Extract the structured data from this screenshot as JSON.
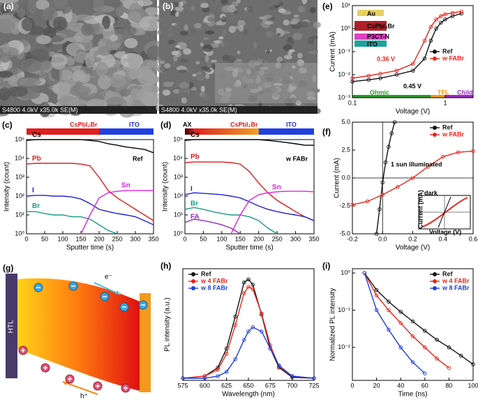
{
  "images": [
    {
      "panel": "(a)",
      "caption": "S4800 4.0kV x35.0k SE(M)"
    },
    {
      "panel": "(b)",
      "caption": "S4800 4.0kV x35.0k SE(M)"
    }
  ],
  "diagram": {
    "panel": "(g)",
    "labels": [
      "HTL",
      "e⁻",
      "h⁺"
    ]
  },
  "chart_data": [
    {
      "panel": "(e)",
      "type": "line",
      "xlabel": "Voltage (V)",
      "ylabel": "Current (mA)",
      "xscale": "log",
      "yscale": "log",
      "xlim": [
        0.1,
        2
      ],
      "xticks": [
        0.1,
        1
      ],
      "ylim": [
        0.001,
        10
      ],
      "yticks": [
        {
          "value": 0.001,
          "label": "10⁻³"
        },
        {
          "value": 0.01,
          "label": "10⁻²"
        },
        {
          "value": 0.1,
          "label": "10⁻¹"
        },
        {
          "value": 1,
          "label": "10⁰"
        },
        {
          "value": 10,
          "label": "10¹"
        }
      ],
      "legend": "center right",
      "markers": true,
      "x": [
        0.1,
        0.15,
        0.2,
        0.3,
        0.45,
        0.6,
        0.7,
        0.8,
        0.9,
        1.0,
        1.2,
        1.5
      ],
      "series": [
        {
          "name": "Ref",
          "color": "#111111",
          "values": [
            0.005,
            0.006,
            0.007,
            0.01,
            0.015,
            0.05,
            0.3,
            1.0,
            1.8,
            2.5,
            3.5,
            4.5
          ]
        },
        {
          "name": "w FABr",
          "color": "#e8251c",
          "values": [
            0.007,
            0.009,
            0.011,
            0.015,
            0.03,
            0.3,
            1.2,
            2.5,
            3.5,
            4.2,
            4.8,
            5.5
          ]
        }
      ],
      "annotations": [
        "0.36 V",
        "0.45 V",
        "Ohmic",
        "TFL",
        "Child",
        "Au",
        "CsPbI₂Br",
        "P3CT-N",
        "ITO"
      ]
    },
    {
      "panel": "(c)",
      "type": "line",
      "xlabel": "Sputter time (s)",
      "ylabel": "Intensity (count)",
      "yscale": "log",
      "xlim": [
        0,
        350
      ],
      "xticks": [
        0,
        50,
        100,
        150,
        200,
        250,
        300,
        350
      ],
      "ylim": [
        1,
        100000
      ],
      "yticks": [
        {
          "value": 1,
          "label": "10⁰"
        },
        {
          "value": 10,
          "label": "10¹"
        },
        {
          "value": 100,
          "label": "10²"
        },
        {
          "value": 1000,
          "label": "10³"
        },
        {
          "value": 10000,
          "label": "10⁴"
        },
        {
          "value": 100000,
          "label": "10⁵"
        }
      ],
      "legend": "inline",
      "x": [
        0,
        25,
        50,
        75,
        100,
        125,
        150,
        175,
        200,
        225,
        250,
        275,
        300,
        325,
        350
      ],
      "series": [
        {
          "name": "Cs",
          "color": "#000000",
          "values": [
            90000,
            100000,
            100000,
            100000,
            100000,
            100000,
            100000,
            90000,
            80000,
            60000,
            50000,
            40000,
            35000,
            30000,
            20000
          ]
        },
        {
          "name": "Pb",
          "color": "#e31a1c",
          "values": [
            5000,
            5500,
            5500,
            5500,
            5500,
            5500,
            5000,
            4000,
            1000,
            200,
            80,
            40,
            20,
            10,
            5
          ]
        },
        {
          "name": "I",
          "color": "#2020d0",
          "values": [
            100,
            110,
            110,
            100,
            100,
            90,
            70,
            40,
            20,
            15,
            12,
            10,
            8,
            5,
            3
          ]
        },
        {
          "name": "Br",
          "color": "#1a9a8a",
          "values": [
            15,
            15,
            12,
            10,
            10,
            8,
            8,
            6,
            3,
            1.5,
            1,
            null,
            null,
            null,
            null
          ]
        },
        {
          "name": "Sn",
          "color": "#e020e0",
          "values": [
            null,
            null,
            null,
            null,
            null,
            null,
            1,
            10,
            80,
            150,
            180,
            200,
            200,
            200,
            200
          ]
        }
      ],
      "annotations": [
        "CsPbI₂Br",
        "ITO",
        "Ref"
      ]
    },
    {
      "panel": "(d)",
      "type": "line",
      "xlabel": "Sputter time (s)",
      "ylabel": "Intensity (count)",
      "yscale": "log",
      "xlim": [
        0,
        350
      ],
      "xticks": [
        0,
        50,
        100,
        150,
        200,
        250,
        300,
        350
      ],
      "ylim": [
        1,
        100000
      ],
      "yticks": [
        {
          "value": 1,
          "label": "10⁰"
        },
        {
          "value": 10,
          "label": "10¹"
        },
        {
          "value": 100,
          "label": "10²"
        },
        {
          "value": 1000,
          "label": "10³"
        },
        {
          "value": 10000,
          "label": "10⁴"
        },
        {
          "value": 100000,
          "label": "10⁵"
        }
      ],
      "legend": "inline",
      "x": [
        0,
        25,
        50,
        75,
        100,
        125,
        150,
        175,
        200,
        225,
        250,
        275,
        300,
        325,
        350
      ],
      "series": [
        {
          "name": "Cs",
          "color": "#000000",
          "values": [
            90000,
            100000,
            100000,
            100000,
            100000,
            100000,
            100000,
            100000,
            100000,
            90000,
            80000,
            70000,
            60000,
            50000,
            50000
          ]
        },
        {
          "name": "Pb",
          "color": "#e31a1c",
          "values": [
            6000,
            6500,
            6500,
            6500,
            6500,
            6000,
            5000,
            2000,
            500,
            150,
            60,
            30,
            15,
            8,
            5
          ]
        },
        {
          "name": "I",
          "color": "#2020d0",
          "values": [
            120,
            150,
            140,
            130,
            120,
            100,
            80,
            50,
            30,
            20,
            15,
            12,
            10,
            8,
            5
          ]
        },
        {
          "name": "Br",
          "color": "#1a9a8a",
          "values": [
            20,
            25,
            20,
            15,
            12,
            10,
            10,
            8,
            5,
            2,
            1,
            null,
            null,
            null,
            null
          ]
        },
        {
          "name": "Sn",
          "color": "#e020e0",
          "values": [
            null,
            null,
            null,
            null,
            null,
            1,
            10,
            60,
            120,
            150,
            170,
            180,
            180,
            180,
            170
          ]
        },
        {
          "name": "FA",
          "color": "#9a2ac0",
          "values": [
            4,
            6,
            5,
            4,
            3,
            2,
            1,
            null,
            null,
            null,
            null,
            null,
            null,
            null,
            null
          ]
        }
      ],
      "annotations": [
        "AX",
        "CsPbI₂Br",
        "ITO",
        "w FABr"
      ]
    },
    {
      "panel": "(f)",
      "type": "line",
      "xlabel": "Voltage (V)",
      "ylabel": "Current (mA)",
      "xlim": [
        -0.2,
        0.6
      ],
      "xticks": [
        -0.2,
        {
          "value": 0,
          "label": "0.0"
        },
        0.2,
        0.4,
        0.6
      ],
      "ylim": [
        -5,
        5
      ],
      "yticks": [
        {
          "value": -5,
          "label": "-5.0"
        },
        -2.5,
        {
          "value": 0,
          "label": "0.0"
        },
        2.5,
        {
          "value": 5,
          "label": "5.0"
        }
      ],
      "legend": "upper right",
      "markers": true,
      "zero_lines": true,
      "series": [
        {
          "name": "Ref",
          "color": "#111111",
          "x": [
            -0.04,
            -0.02,
            0,
            0.02,
            0.04,
            0.06,
            0.08
          ],
          "values": [
            -5,
            -2.8,
            -0.4,
            1.4,
            2.8,
            4,
            5
          ]
        },
        {
          "name": "w FABr",
          "color": "#e8251c",
          "x": [
            -0.2,
            -0.1,
            0,
            0.1,
            0.2,
            0.3,
            0.4,
            0.5,
            0.6
          ],
          "values": [
            -2.4,
            -2.1,
            -1.5,
            -0.8,
            0,
            1,
            1.9,
            2.3,
            2.4
          ]
        }
      ],
      "annotations": [
        "1 sun illuminated",
        "dark",
        "Voltage (V)",
        "Current (mA)"
      ]
    },
    {
      "panel": "(h)",
      "type": "line",
      "xlabel": "Wavelength (nm)",
      "ylabel": "PL intensity (a.u.)",
      "xlim": [
        575,
        725
      ],
      "xticks": [
        575,
        600,
        625,
        650,
        675,
        700,
        725
      ],
      "ylim": [
        0,
        1.05
      ],
      "yticks": [],
      "legend": "upper left",
      "markers": true,
      "x": [
        575,
        600,
        615,
        625,
        635,
        645,
        650,
        655,
        665,
        675,
        685,
        700,
        725
      ],
      "series": [
        {
          "name": "Ref",
          "color": "#111111",
          "values": [
            0.02,
            0.04,
            0.12,
            0.3,
            0.6,
            0.92,
            0.95,
            0.9,
            0.62,
            0.3,
            0.12,
            0.03,
            0.02
          ]
        },
        {
          "name": "w 4 FABr",
          "color": "#e8251c",
          "values": [
            0.02,
            0.04,
            0.1,
            0.25,
            0.52,
            0.82,
            0.88,
            0.86,
            0.63,
            0.33,
            0.13,
            0.04,
            0.02
          ]
        },
        {
          "name": "w 8 FABr",
          "color": "#1f3fe0",
          "values": [
            0.02,
            0.02,
            0.04,
            0.08,
            0.2,
            0.38,
            0.46,
            0.5,
            0.46,
            0.3,
            0.14,
            0.04,
            0.02
          ]
        }
      ],
      "annotations": []
    },
    {
      "panel": "(i)",
      "type": "line",
      "xlabel": "Time (ns)",
      "ylabel": "Normalized PL intensity",
      "yscale": "log",
      "xlim": [
        0,
        100
      ],
      "xticks": [
        0,
        20,
        40,
        60,
        80,
        100
      ],
      "ylim": [
        0.0013,
        1.3
      ],
      "yticks": [
        {
          "value": 0.01,
          "label": "10⁻²"
        },
        {
          "value": 0.1,
          "label": "10⁻¹"
        },
        {
          "value": 1,
          "label": "10⁰"
        }
      ],
      "legend": "upper right",
      "markers": true,
      "x": [
        10,
        20,
        30,
        40,
        50,
        60,
        70,
        80,
        90,
        100
      ],
      "series": [
        {
          "name": "Ref",
          "color": "#111111",
          "values": [
            1,
            0.35,
            0.17,
            0.09,
            0.05,
            0.028,
            0.016,
            0.01,
            0.006,
            0.0035
          ]
        },
        {
          "name": "w 4 FABr",
          "color": "#e8251c",
          "values": [
            1,
            0.25,
            0.1,
            0.045,
            0.02,
            0.01,
            0.005,
            0.0028,
            null,
            null
          ]
        },
        {
          "name": "w 8 FABr",
          "color": "#1f3fe0",
          "values": [
            1,
            0.1,
            0.03,
            0.01,
            0.004,
            0.002,
            null,
            null,
            null,
            null
          ]
        }
      ],
      "annotations": []
    }
  ]
}
